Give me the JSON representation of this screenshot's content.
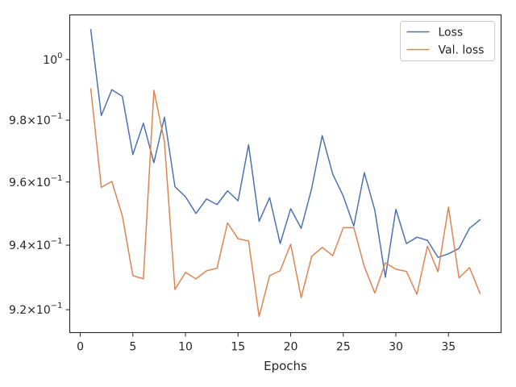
{
  "chart_data": {
    "type": "line",
    "title": "",
    "xlabel": "Epochs",
    "ylabel": "",
    "yscale": "log",
    "xlim": [
      -1,
      40
    ],
    "ylim": [
      0.913,
      1.015
    ],
    "grid": false,
    "legend_position": "top-right",
    "xticks": [
      0,
      5,
      10,
      15,
      20,
      25,
      30,
      35
    ],
    "xtick_labels": [
      "0",
      "5",
      "10",
      "15",
      "20",
      "25",
      "30",
      "35"
    ],
    "yticks": [
      0.92,
      0.94,
      0.96,
      0.98,
      1.0
    ],
    "ytick_labels": [
      {
        "mantissa": "9.2",
        "exponent": "−1"
      },
      {
        "mantissa": "9.4",
        "exponent": "−1"
      },
      {
        "mantissa": "9.6",
        "exponent": "−1"
      },
      {
        "mantissa": "9.8",
        "exponent": "−1"
      },
      {
        "mantissa": "",
        "exponent": "0"
      }
    ],
    "x": [
      1,
      2,
      3,
      4,
      5,
      6,
      7,
      8,
      9,
      10,
      11,
      12,
      13,
      14,
      15,
      16,
      17,
      18,
      19,
      20,
      21,
      22,
      23,
      24,
      25,
      26,
      27,
      28,
      29,
      30,
      31,
      32,
      33,
      34,
      35,
      36,
      37,
      38
    ],
    "series": [
      {
        "name": "Loss",
        "color": "#4c72b0",
        "values": [
          1.01,
          0.9815,
          0.99,
          0.9878,
          0.9688,
          0.979,
          0.9662,
          0.981,
          0.9585,
          0.9553,
          0.95,
          0.9546,
          0.9528,
          0.9572,
          0.954,
          0.972,
          0.9475,
          0.955,
          0.9405,
          0.9515,
          0.9453,
          0.958,
          0.975,
          0.9625,
          0.9555,
          0.946,
          0.963,
          0.951,
          0.93,
          0.9513,
          0.9405,
          0.9425,
          0.9415,
          0.9362,
          0.9373,
          0.939,
          0.9453,
          0.948
        ]
      },
      {
        "name": "Val. loss",
        "color": "#dd8452",
        "values": [
          0.9903,
          0.9583,
          0.9602,
          0.9492,
          0.9305,
          0.9295,
          0.9898,
          0.973,
          0.9262,
          0.9315,
          0.9295,
          0.932,
          0.9328,
          0.947,
          0.942,
          0.9413,
          0.9179,
          0.9305,
          0.932,
          0.9403,
          0.9237,
          0.9365,
          0.9393,
          0.9367,
          0.9455,
          0.9455,
          0.9333,
          0.9251,
          0.9345,
          0.9325,
          0.9318,
          0.9247,
          0.9397,
          0.9317,
          0.952,
          0.9298,
          0.933,
          0.925
        ]
      }
    ]
  }
}
